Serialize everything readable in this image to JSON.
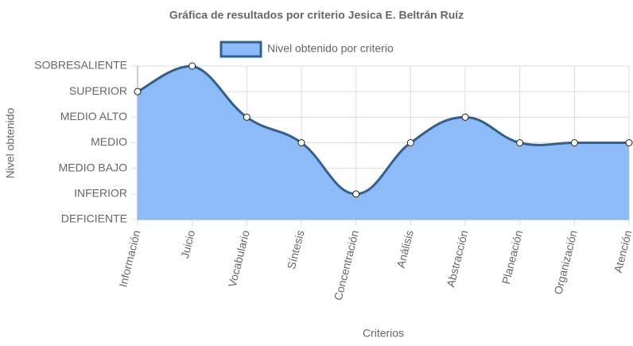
{
  "chart_data": {
    "type": "area",
    "title": "Gráfica de resultados por criterio Jesica E. Beltrán Ruíz",
    "x_label": "Criterios",
    "y_label": "Nivel obtenido",
    "categories": [
      "Información",
      "Juicio",
      "Vocabulario",
      "Síntesis",
      "Concentración",
      "Análisis",
      "Abstracción",
      "Planeación",
      "Organización",
      "Atención"
    ],
    "series": [
      {
        "name": "Nivel obtenido por criterio",
        "color": "#2f5f97",
        "fill_color": "#8cbbf7",
        "values": [
          5,
          6,
          4,
          3,
          1,
          3,
          4,
          3,
          3,
          3
        ]
      }
    ],
    "ylim": [
      0,
      6
    ],
    "yticks": [
      {
        "value": 0,
        "label": "DEFICIENTE"
      },
      {
        "value": 1,
        "label": "INFERIOR"
      },
      {
        "value": 2,
        "label": "MEDIO BAJO"
      },
      {
        "value": 3,
        "label": "MEDIO"
      },
      {
        "value": 4,
        "label": "MEDIO ALTO"
      },
      {
        "value": 5,
        "label": "SUPERIOR"
      },
      {
        "value": 6,
        "label": "SOBRESALIENTE"
      }
    ],
    "grid": true,
    "legend": "top"
  }
}
